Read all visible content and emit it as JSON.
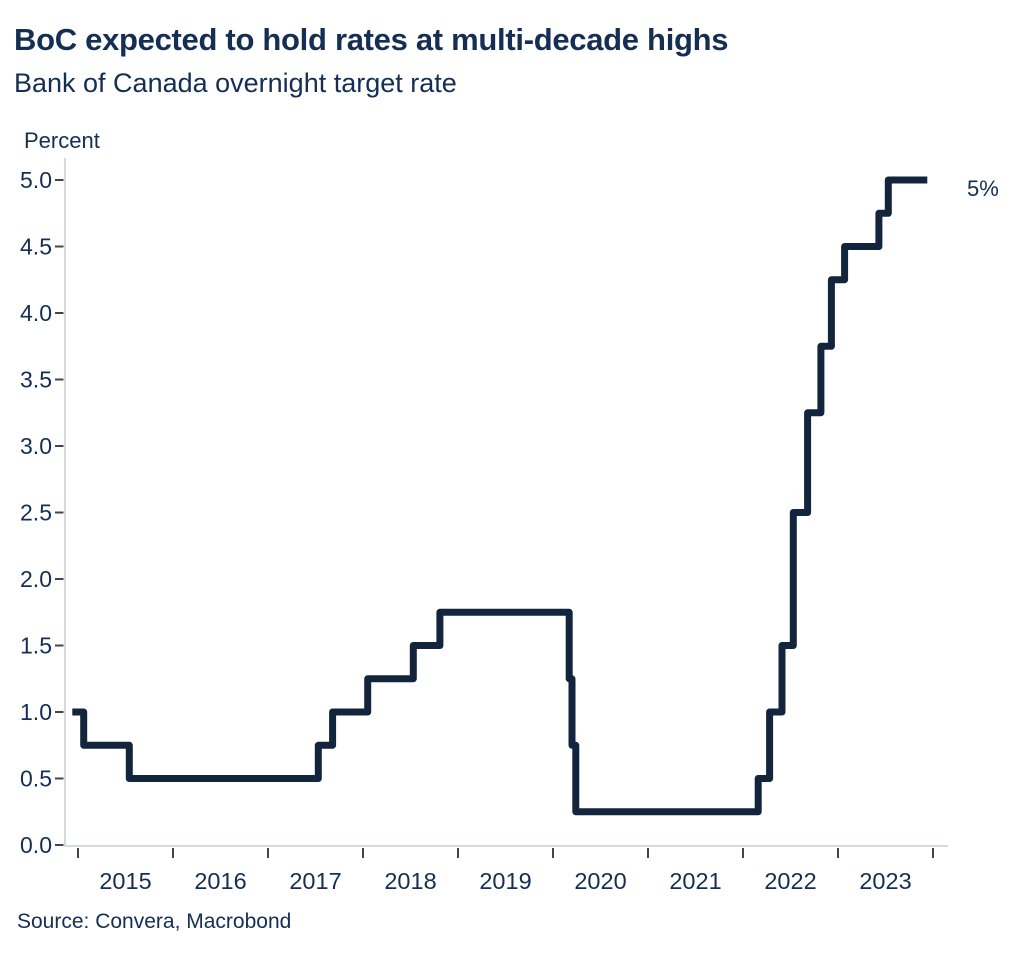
{
  "header": {
    "title": "BoC expected to hold rates at multi-decade highs",
    "subtitle": "Bank of Canada overnight target rate"
  },
  "footer": {
    "source": "Source: Convera, Macrobond"
  },
  "chart_data": {
    "type": "line",
    "line_style": "step-after",
    "title": "BoC expected to hold rates at multi-decade highs",
    "subtitle": "Bank of Canada overnight target rate",
    "ylabel": "Percent",
    "xlabel": "",
    "grid": false,
    "legend": "none",
    "end_label": "5%",
    "ylim": [
      0.0,
      5.0
    ],
    "xlim": [
      2014.85,
      2024.1
    ],
    "y_axis": {
      "ticks": [
        0.0,
        0.5,
        1.0,
        1.5,
        2.0,
        2.5,
        3.0,
        3.5,
        4.0,
        4.5,
        5.0
      ],
      "tick_labels": [
        "0.0",
        "0.5",
        "1.0",
        "1.5",
        "2.0",
        "2.5",
        "3.0",
        "3.5",
        "4.0",
        "4.5",
        "5.0"
      ]
    },
    "x_axis": {
      "boundary_year_ticks": [
        2015,
        2016,
        2017,
        2018,
        2019,
        2020,
        2021,
        2022,
        2023,
        2024
      ],
      "year_labels": [
        "2015",
        "2016",
        "2017",
        "2018",
        "2019",
        "2020",
        "2021",
        "2022",
        "2023"
      ]
    },
    "series": [
      {
        "name": "Bank of Canada overnight target rate",
        "unit": "percent",
        "x_end": 2023.94,
        "points": [
          {
            "x": 2014.94,
            "rate": 1.0
          },
          {
            "x": 2015.06,
            "rate": 0.75
          },
          {
            "x": 2015.54,
            "rate": 0.5
          },
          {
            "x": 2017.53,
            "rate": 0.75
          },
          {
            "x": 2017.68,
            "rate": 1.0
          },
          {
            "x": 2018.05,
            "rate": 1.25
          },
          {
            "x": 2018.53,
            "rate": 1.5
          },
          {
            "x": 2018.81,
            "rate": 1.75
          },
          {
            "x": 2020.17,
            "rate": 1.25
          },
          {
            "x": 2020.2,
            "rate": 0.75
          },
          {
            "x": 2020.24,
            "rate": 0.25
          },
          {
            "x": 2022.16,
            "rate": 0.5
          },
          {
            "x": 2022.28,
            "rate": 1.0
          },
          {
            "x": 2022.41,
            "rate": 1.5
          },
          {
            "x": 2022.53,
            "rate": 2.5
          },
          {
            "x": 2022.68,
            "rate": 3.25
          },
          {
            "x": 2022.82,
            "rate": 3.75
          },
          {
            "x": 2022.93,
            "rate": 4.25
          },
          {
            "x": 2023.07,
            "rate": 4.5
          },
          {
            "x": 2023.43,
            "rate": 4.75
          },
          {
            "x": 2023.53,
            "rate": 5.0
          }
        ]
      }
    ],
    "colors": {
      "line": "#13253c",
      "text": "#142e54",
      "axis_line": "#c9cdd1",
      "tick_mark": "#454545",
      "background": "#ffffff"
    }
  }
}
